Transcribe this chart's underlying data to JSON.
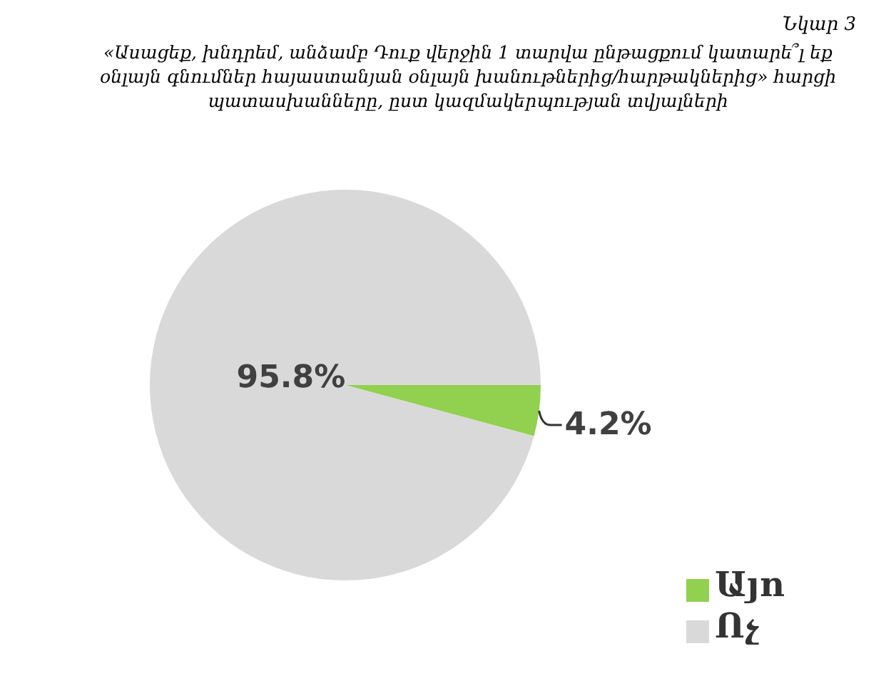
{
  "chart_data": {
    "type": "pie",
    "title": "«Ասացեք, խնդրեմ, անձամբ Դուք վերջին 1 տարվա ընթացքում կատարե՞լ եք օնլայն գնումներ հայաստանյան օնլայն խանութներից/հարթակներից» հարցի պատասխանները, ըստ կազմակերպության տվյալների",
    "annotations": [
      "Նկար 3"
    ],
    "categories": [
      "Այո",
      "Ոչ"
    ],
    "values": [
      4.2,
      95.8
    ],
    "value_labels": [
      "4.2%",
      "95.8%"
    ],
    "colors": [
      "#92d050",
      "#d9d9d9"
    ],
    "legend": "bottom right"
  }
}
